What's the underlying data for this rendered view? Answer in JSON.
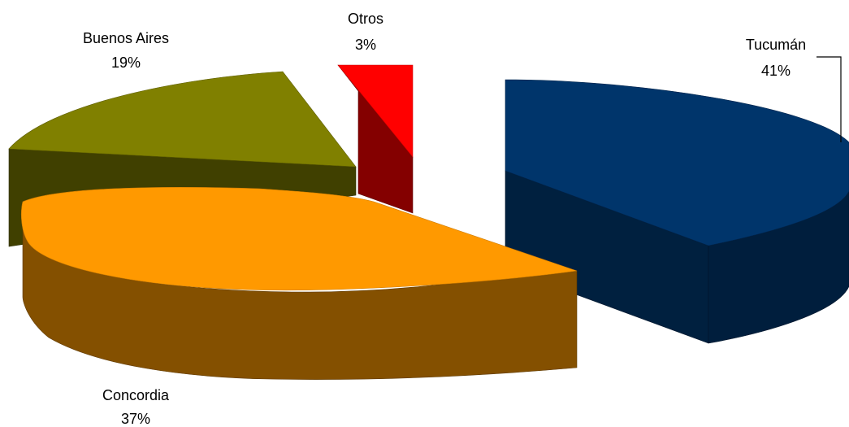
{
  "chart_data": {
    "type": "pie",
    "title": "",
    "style": "3d-exploded",
    "legend": "none",
    "slices": [
      {
        "name": "Tucumán",
        "value": 41,
        "label": "41%",
        "color": "#00356B",
        "side_color": "#001E3D"
      },
      {
        "name": "Concordia",
        "value": 37,
        "label": "37%",
        "color": "#FF9900",
        "side_color": "#845000"
      },
      {
        "name": "Buenos Aires",
        "value": 19,
        "label": "19%",
        "color": "#808000",
        "side_color": "#404000"
      },
      {
        "name": "Otros",
        "value": 3,
        "label": "3%",
        "color": "#FF0000",
        "side_color": "#840000"
      }
    ]
  }
}
